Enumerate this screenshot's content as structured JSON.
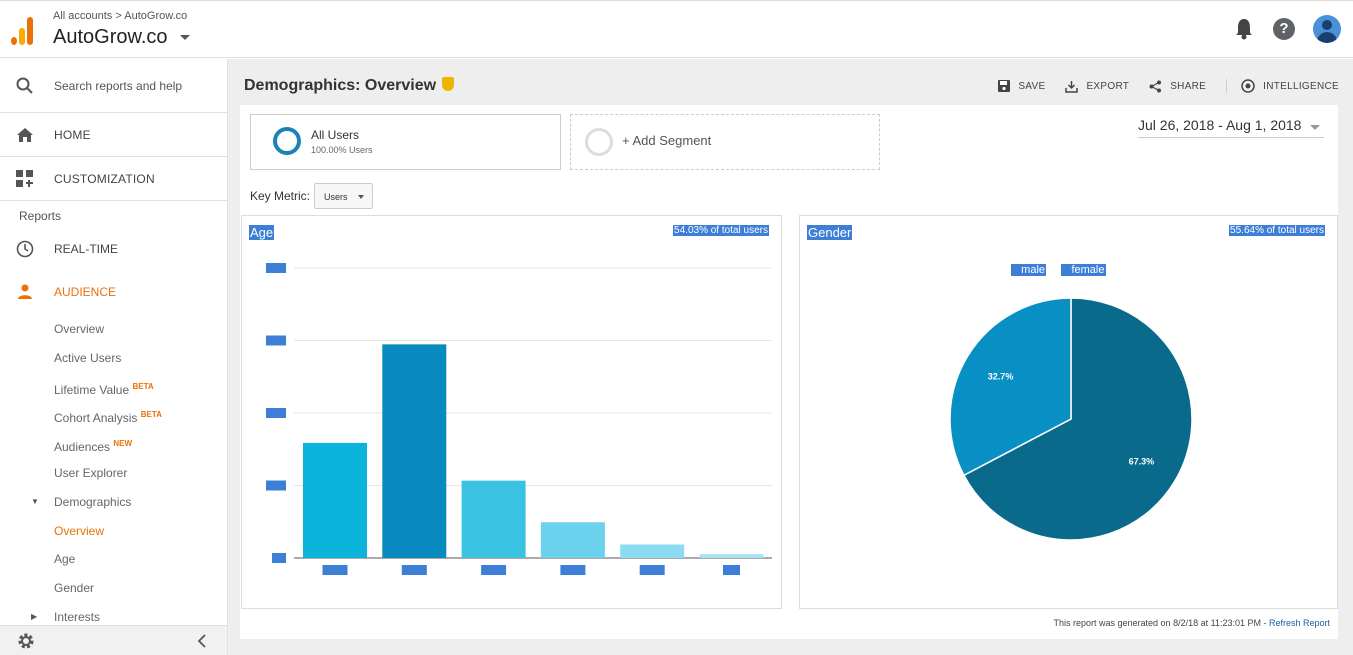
{
  "topbar": {
    "breadcrumb_root": "All accounts",
    "breadcrumb_sep": ">",
    "breadcrumb_account": "AutoGrow.co",
    "account_name": "AutoGrow.co"
  },
  "sidebar": {
    "search_placeholder": "Search reports and help",
    "home": "HOME",
    "customization": "CUSTOMIZATION",
    "reports_label": "Reports",
    "realtime": "REAL-TIME",
    "audience": "AUDIENCE",
    "sub_items": [
      {
        "label": "Overview",
        "badge": ""
      },
      {
        "label": "Active Users",
        "badge": ""
      },
      {
        "label": "Lifetime Value",
        "badge": "BETA"
      },
      {
        "label": "Cohort Analysis",
        "badge": "BETA"
      },
      {
        "label": "Audiences",
        "badge": "NEW"
      },
      {
        "label": "User Explorer",
        "badge": ""
      },
      {
        "label": "Demographics",
        "badge": ""
      },
      {
        "label": "Overview",
        "badge": ""
      },
      {
        "label": "Age",
        "badge": ""
      },
      {
        "label": "Gender",
        "badge": ""
      },
      {
        "label": "Interests",
        "badge": ""
      }
    ]
  },
  "header": {
    "title": "Demographics: Overview",
    "actions": {
      "save": "SAVE",
      "export": "EXPORT",
      "share": "SHARE",
      "intelligence": "INTELLIGENCE"
    }
  },
  "segments": {
    "primary_name": "All Users",
    "primary_pct": "100.00% Users",
    "add_label": "+ Add Segment"
  },
  "date_range": "Jul 26, 2018 - Aug 1, 2018",
  "key_metric": {
    "label": "Key Metric:",
    "value": "Users"
  },
  "age_card": {
    "title": "Age",
    "pct_label": "54.03% of total users"
  },
  "gender_card": {
    "title": "Gender",
    "pct_label": "55.64% of total users",
    "legend_male": "male",
    "legend_female": "female"
  },
  "footer": {
    "text": "This report was generated on 8/2/18 at 11:23:01 PM - ",
    "link": "Refresh Report"
  },
  "colors": {
    "accent": "#e8710a",
    "selection": "#3d7fd6",
    "male": "#0a6a8c",
    "female": "#0890c4"
  },
  "chart_data": [
    {
      "type": "bar",
      "title": "Age",
      "categories": [
        "",
        "",
        "",
        "",
        "",
        ""
      ],
      "values": [
        119,
        221,
        80,
        37,
        14,
        4
      ],
      "bar_colors": [
        "#0ab4da",
        "#0889c0",
        "#3ac2e2",
        "#6bd2ee",
        "#8bdbf2",
        "#a7e3f5"
      ],
      "ylim": [
        0,
        300
      ],
      "grid": true
    },
    {
      "type": "pie",
      "title": "Gender",
      "categories": [
        "male",
        "female"
      ],
      "values": [
        67.3,
        32.7
      ],
      "labels": [
        "67.3%",
        "32.7%"
      ]
    }
  ]
}
